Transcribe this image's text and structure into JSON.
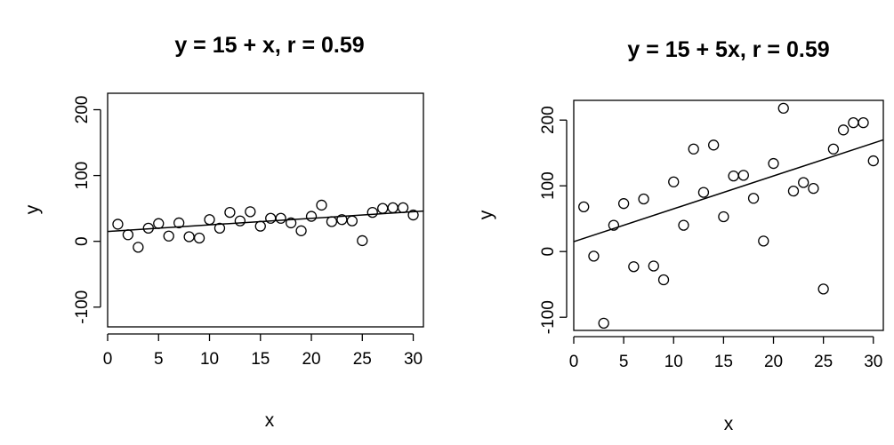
{
  "chart_data": [
    {
      "type": "scatter",
      "title": "y = 15 + x, r = 0.59",
      "xlabel": "x",
      "ylabel": "y",
      "xlim": [
        0,
        31
      ],
      "ylim": [
        -130,
        225
      ],
      "xticks": [
        0,
        5,
        10,
        15,
        20,
        25,
        30
      ],
      "yticks": [
        -100,
        0,
        100,
        200
      ],
      "grid": false,
      "x": [
        1,
        2,
        3,
        4,
        5,
        6,
        7,
        8,
        9,
        10,
        11,
        12,
        13,
        14,
        15,
        16,
        17,
        18,
        19,
        20,
        21,
        22,
        23,
        24,
        25,
        26,
        27,
        28,
        29,
        30
      ],
      "y": [
        26,
        10,
        -9,
        20,
        27,
        8,
        28,
        7,
        5,
        33,
        20,
        44,
        31,
        45,
        23,
        35,
        35,
        28,
        16,
        38,
        55,
        30,
        33,
        31,
        1,
        44,
        50,
        51,
        51,
        40
      ],
      "fit_line": {
        "intercept": 15,
        "slope": 1,
        "x_range": [
          0,
          31
        ]
      }
    },
    {
      "type": "scatter",
      "title": "y = 15 + 5x, r = 0.59",
      "xlabel": "x",
      "ylabel": "y",
      "xlim": [
        0,
        31
      ],
      "ylim": [
        -120,
        230
      ],
      "xticks": [
        0,
        5,
        10,
        15,
        20,
        25,
        30
      ],
      "yticks": [
        -100,
        0,
        100,
        200
      ],
      "grid": false,
      "x": [
        1,
        2,
        3,
        4,
        5,
        6,
        7,
        8,
        9,
        10,
        11,
        12,
        13,
        14,
        15,
        16,
        17,
        18,
        19,
        20,
        21,
        22,
        23,
        24,
        25,
        26,
        27,
        28,
        29,
        30
      ],
      "y": [
        68,
        -7,
        -109,
        40,
        73,
        -23,
        80,
        -22,
        -43,
        106,
        40,
        156,
        90,
        162,
        53,
        115,
        116,
        81,
        16,
        134,
        218,
        92,
        105,
        96,
        -57,
        156,
        185,
        196,
        196,
        138
      ],
      "fit_line": {
        "intercept": 15,
        "slope": 5,
        "x_range": [
          0,
          31
        ]
      }
    }
  ]
}
